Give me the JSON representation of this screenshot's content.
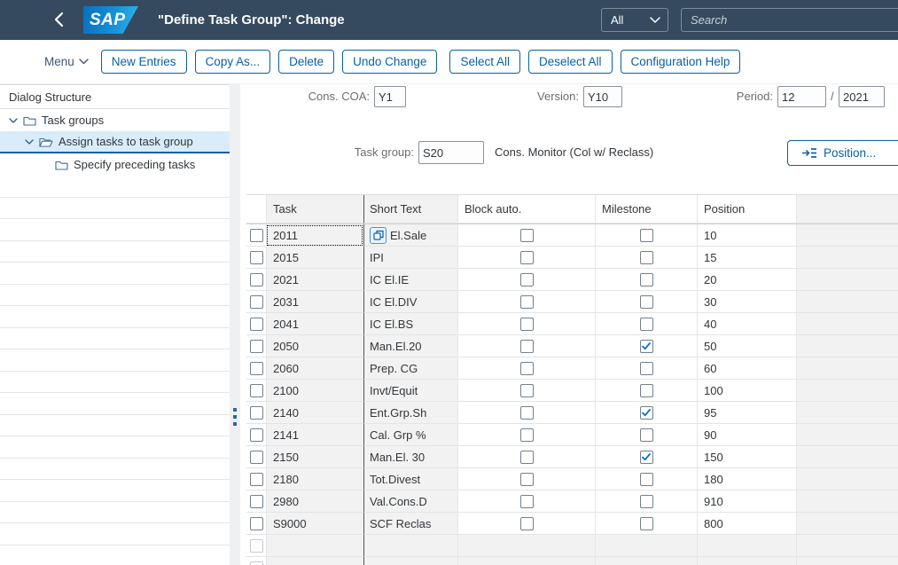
{
  "colors": {
    "accent": "#0b5fa4",
    "header_bg": "#354a5f",
    "selected_item_bg": "#d9ecfa",
    "checkmark": "#0a6ed1"
  },
  "header": {
    "logo": "SAP",
    "title": "\"Define Task Group\": Change",
    "scope_value": "All",
    "search_placeholder": "Search"
  },
  "toolbar": {
    "menu_label": "Menu",
    "buttons": [
      "New Entries",
      "Copy As...",
      "Delete",
      "Undo Change",
      "Select All",
      "Deselect All",
      "Configuration Help"
    ]
  },
  "sidebar": {
    "title": "Dialog Structure",
    "items": [
      {
        "label": "Task groups",
        "level": 0,
        "expanded": true,
        "selected": false,
        "icon": "folder"
      },
      {
        "label": "Assign tasks to task group",
        "level": 1,
        "expanded": true,
        "selected": true,
        "icon": "folder-open"
      },
      {
        "label": "Specify preceding tasks",
        "level": 2,
        "expanded": false,
        "selected": false,
        "icon": "folder"
      }
    ]
  },
  "form": {
    "cons_coa_label": "Cons. COA:",
    "cons_coa_value": "Y1",
    "version_label": "Version:",
    "version_value": "Y10",
    "period_label": "Period:",
    "period_value": "12",
    "period_separator": "/",
    "period_year": "2021",
    "task_group_label": "Task group:",
    "task_group_value": "S20",
    "task_group_description": "Cons. Monitor (Col w/ Reclass)",
    "position_button_label": "Position..."
  },
  "table": {
    "columns": [
      "Task",
      "Short Text",
      "Block auto.",
      "Milestone",
      "Position"
    ],
    "rows": [
      {
        "task": "2011",
        "short_text": "El.Sale",
        "block_auto": false,
        "milestone": false,
        "position": "10",
        "focused": true
      },
      {
        "task": "2015",
        "short_text": "IPI",
        "block_auto": false,
        "milestone": false,
        "position": "15"
      },
      {
        "task": "2021",
        "short_text": "IC El.IE",
        "block_auto": false,
        "milestone": false,
        "position": "20"
      },
      {
        "task": "2031",
        "short_text": "IC El.DIV",
        "block_auto": false,
        "milestone": false,
        "position": "30"
      },
      {
        "task": "2041",
        "short_text": "IC El.BS",
        "block_auto": false,
        "milestone": false,
        "position": "40"
      },
      {
        "task": "2050",
        "short_text": "Man.El.20",
        "block_auto": false,
        "milestone": true,
        "position": "50"
      },
      {
        "task": "2060",
        "short_text": "Prep. CG",
        "block_auto": false,
        "milestone": false,
        "position": "60"
      },
      {
        "task": "2100",
        "short_text": "Invt/Equit",
        "block_auto": false,
        "milestone": false,
        "position": "100"
      },
      {
        "task": "2140",
        "short_text": "Ent.Grp.Sh",
        "block_auto": false,
        "milestone": true,
        "position": "95"
      },
      {
        "task": "2141",
        "short_text": "Cal. Grp %",
        "block_auto": false,
        "milestone": false,
        "position": "90"
      },
      {
        "task": "2150",
        "short_text": "Man.El. 30",
        "block_auto": false,
        "milestone": true,
        "position": "150"
      },
      {
        "task": "2180",
        "short_text": "Tot.Divest",
        "block_auto": false,
        "milestone": false,
        "position": "180"
      },
      {
        "task": "2980",
        "short_text": "Val.Cons.D",
        "block_auto": false,
        "milestone": false,
        "position": "910"
      },
      {
        "task": "S9000",
        "short_text": "SCF Reclas",
        "block_auto": false,
        "milestone": false,
        "position": "800"
      }
    ],
    "empty_rows": 2
  }
}
